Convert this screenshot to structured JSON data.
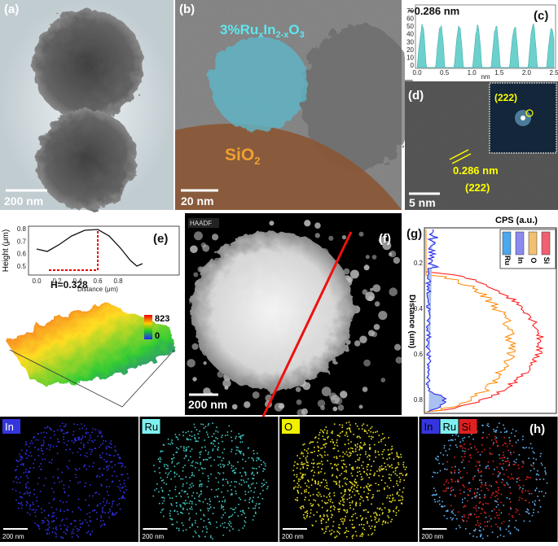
{
  "panels": {
    "a": {
      "label": "(a)",
      "scale_bar": "200 nm"
    },
    "b": {
      "label": "(b)",
      "annotation": [
        "3%Ru",
        "x",
        "In",
        "2-x",
        "O",
        "3"
      ],
      "substrate": [
        "SiO",
        "2"
      ],
      "scale_bar": "20 nm"
    },
    "c": {
      "label": "(c)",
      "annotation": "~0.286 nm",
      "yticks": [
        "70",
        "60",
        "50",
        "40",
        "30",
        "20",
        "10",
        "0"
      ],
      "xticks": [
        "0.0",
        "0.5",
        "1.0",
        "1.5",
        "2.0",
        "2.5"
      ],
      "xlabel": "nm"
    },
    "d": {
      "label": "(d)",
      "inset_label": "(222)",
      "spacing": "0.286 nm",
      "plane": "(222)",
      "scale_bar": "5 nm"
    },
    "e": {
      "label": "(e)",
      "ylabel": "Height (μm)",
      "xlabel": "Distance (μm)",
      "yticks": [
        "0.5",
        "0.6",
        "0.7",
        "0.8"
      ],
      "xticks": [
        "0.0",
        "0.2",
        "0.4",
        "0.6",
        "0.8"
      ],
      "annotation": "H=0.328",
      "colorbar": [
        "823",
        "0"
      ]
    },
    "f": {
      "label": "(f)",
      "mode": "HAADF",
      "scale_bar": "200 nm"
    },
    "g": {
      "label": "(g)",
      "title": "CPS (a.u.)",
      "ylabel": "Distance (um)",
      "yticks": [
        "0.2",
        "0.4",
        "0.6",
        "0.8"
      ],
      "legend": [
        "Ru",
        "In",
        "O",
        "Si"
      ]
    },
    "h": {
      "label": "(h)",
      "maps": [
        [
          "In"
        ],
        [
          "Ru"
        ],
        [
          "O"
        ],
        [
          "In",
          "Ru",
          "Si"
        ]
      ],
      "scale_bar": "200 nm"
    }
  }
}
